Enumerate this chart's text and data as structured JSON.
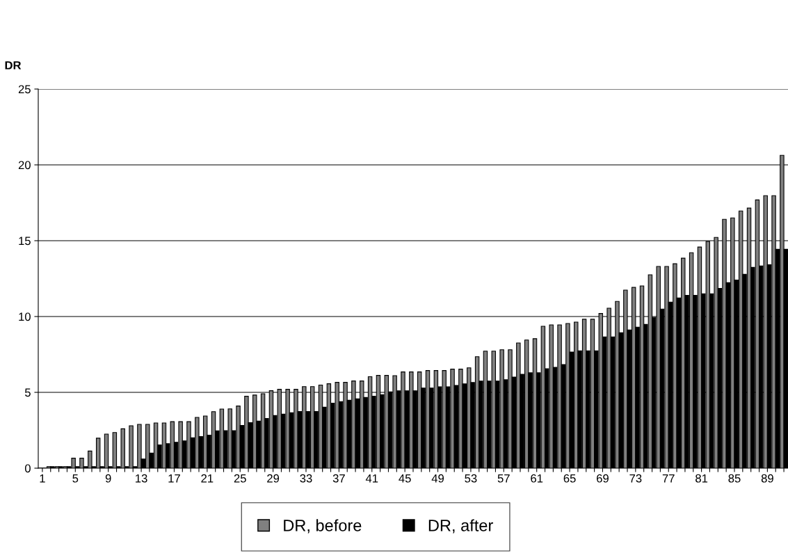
{
  "chart_data": {
    "type": "bar",
    "ylabel": "DR",
    "categories": [
      "1",
      null,
      null,
      null,
      "5",
      null,
      null,
      null,
      "9",
      null,
      null,
      null,
      "13",
      null,
      null,
      null,
      "17",
      null,
      null,
      null,
      "21",
      null,
      null,
      null,
      "25",
      null,
      null,
      null,
      "29",
      null,
      null,
      null,
      "33",
      null,
      null,
      null,
      "37",
      null,
      null,
      null,
      "41",
      null,
      null,
      null,
      "45",
      null,
      null,
      null,
      "49",
      null,
      null,
      null,
      "53",
      null,
      null,
      null,
      "57",
      null,
      null,
      null,
      "61",
      null,
      null,
      null,
      "65",
      null,
      null,
      null,
      "69",
      null,
      null,
      null,
      "73",
      null,
      null,
      null,
      "77",
      null,
      null,
      null,
      "81",
      null,
      null,
      null,
      "85",
      null,
      null,
      null,
      "89",
      null,
      null
    ],
    "series": [
      {
        "name": "DR, before",
        "color": "#808080",
        "values": [
          0,
          0.1,
          0.1,
          0.1,
          0.66,
          0.66,
          1.13,
          1.98,
          2.25,
          2.35,
          2.6,
          2.8,
          2.89,
          2.89,
          2.98,
          2.98,
          3.07,
          3.07,
          3.07,
          3.35,
          3.44,
          3.73,
          3.9,
          3.91,
          4.1,
          4.74,
          4.82,
          4.91,
          5.11,
          5.2,
          5.2,
          5.2,
          5.38,
          5.38,
          5.48,
          5.57,
          5.66,
          5.66,
          5.75,
          5.75,
          6.03,
          6.12,
          6.12,
          6.1,
          6.35,
          6.35,
          6.35,
          6.44,
          6.44,
          6.44,
          6.53,
          6.53,
          6.62,
          7.35,
          7.72,
          7.72,
          7.81,
          7.81,
          8.26,
          8.45,
          8.54,
          9.36,
          9.45,
          9.45,
          9.54,
          9.63,
          9.82,
          9.82,
          10.2,
          10.55,
          11.0,
          11.74,
          11.92,
          12.02,
          12.75,
          13.3,
          13.3,
          13.48,
          13.85,
          14.21,
          14.58,
          14.95,
          15.22,
          16.41,
          16.5,
          16.96,
          17.15,
          17.69,
          17.97,
          17.97,
          20.63
        ]
      },
      {
        "name": "DR, after",
        "color": "#000000",
        "values": [
          0,
          0.1,
          0.1,
          0.1,
          0.1,
          0.1,
          0.1,
          0.1,
          0.1,
          0.1,
          0.1,
          0.1,
          0.6,
          0.99,
          1.53,
          1.62,
          1.71,
          1.8,
          2.0,
          2.08,
          2.18,
          2.46,
          2.47,
          2.47,
          2.82,
          3.0,
          3.1,
          3.28,
          3.47,
          3.56,
          3.65,
          3.74,
          3.74,
          3.74,
          4.02,
          4.29,
          4.39,
          4.48,
          4.57,
          4.66,
          4.75,
          4.85,
          5.03,
          5.1,
          5.1,
          5.1,
          5.28,
          5.28,
          5.37,
          5.37,
          5.46,
          5.56,
          5.65,
          5.74,
          5.74,
          5.74,
          5.83,
          6.01,
          6.19,
          6.29,
          6.29,
          6.56,
          6.65,
          6.83,
          7.66,
          7.74,
          7.74,
          7.74,
          8.66,
          8.66,
          8.93,
          9.11,
          9.3,
          9.48,
          9.94,
          10.49,
          10.95,
          11.22,
          11.4,
          11.4,
          11.5,
          11.5,
          11.86,
          12.23,
          12.41,
          12.78,
          13.24,
          13.33,
          13.42,
          14.43,
          14.43
        ]
      }
    ],
    "ylim": [
      0,
      25
    ],
    "yticks": [
      0,
      5,
      10,
      15,
      20,
      25
    ],
    "grid": "y",
    "legend": "bottom"
  }
}
